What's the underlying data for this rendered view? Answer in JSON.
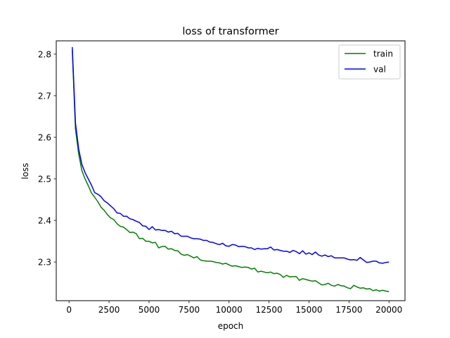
{
  "chart_data": {
    "type": "line",
    "title": "loss of transformer",
    "xlabel": "epoch",
    "ylabel": "loss",
    "xlim": [
      -800,
      21000
    ],
    "ylim": [
      2.207,
      2.832
    ],
    "xticks": [
      0,
      2500,
      5000,
      7500,
      10000,
      12500,
      15000,
      17500,
      20000
    ],
    "xtick_labels": [
      "0",
      "2500",
      "5000",
      "7500",
      "10000",
      "12500",
      "15000",
      "17500",
      "20000"
    ],
    "yticks": [
      2.3,
      2.4,
      2.5,
      2.6,
      2.7,
      2.8
    ],
    "ytick_labels": [
      "2.3",
      "2.4",
      "2.5",
      "2.6",
      "2.7",
      "2.8"
    ],
    "grid": false,
    "legend_position": "upper right",
    "series": [
      {
        "name": "train",
        "color": "#008000",
        "x": [
          200,
          400,
          600,
          800,
          1000,
          1200,
          1400,
          1600,
          1800,
          2000,
          2200,
          2400,
          2600,
          2800,
          3000,
          3200,
          3400,
          3600,
          3800,
          4000,
          4200,
          4400,
          4600,
          4800,
          5000,
          5200,
          5400,
          5600,
          5800,
          6000,
          6200,
          6400,
          6600,
          6800,
          7000,
          7200,
          7400,
          7600,
          7800,
          8000,
          8200,
          8400,
          8600,
          8800,
          9000,
          9200,
          9400,
          9600,
          9800,
          10000,
          10200,
          10400,
          10600,
          10800,
          11000,
          11200,
          11400,
          11600,
          11800,
          12000,
          12200,
          12400,
          12600,
          12800,
          13000,
          13200,
          13400,
          13600,
          13800,
          14000,
          14200,
          14400,
          14600,
          14800,
          15000,
          15200,
          15400,
          15600,
          15800,
          16000,
          16200,
          16400,
          16600,
          16800,
          17000,
          17200,
          17400,
          17600,
          17800,
          18000,
          18200,
          18400,
          18600,
          18800,
          19000,
          19200,
          19400,
          19600,
          19800,
          20000
        ],
        "values": [
          2.81,
          2.62,
          2.56,
          2.52,
          2.5,
          2.484,
          2.466,
          2.456,
          2.445,
          2.432,
          2.424,
          2.414,
          2.406,
          2.402,
          2.392,
          2.386,
          2.384,
          2.378,
          2.371,
          2.372,
          2.368,
          2.356,
          2.357,
          2.35,
          2.35,
          2.346,
          2.347,
          2.334,
          2.337,
          2.338,
          2.331,
          2.332,
          2.328,
          2.327,
          2.319,
          2.316,
          2.318,
          2.314,
          2.31,
          2.313,
          2.305,
          2.303,
          2.302,
          2.302,
          2.301,
          2.299,
          2.298,
          2.295,
          2.297,
          2.293,
          2.29,
          2.291,
          2.289,
          2.287,
          2.288,
          2.287,
          2.283,
          2.285,
          2.276,
          2.278,
          2.276,
          2.274,
          2.276,
          2.272,
          2.273,
          2.27,
          2.263,
          2.268,
          2.264,
          2.265,
          2.265,
          2.256,
          2.26,
          2.258,
          2.256,
          2.254,
          2.255,
          2.25,
          2.245,
          2.246,
          2.249,
          2.244,
          2.242,
          2.246,
          2.243,
          2.242,
          2.238,
          2.236,
          2.244,
          2.24,
          2.237,
          2.238,
          2.235,
          2.236,
          2.231,
          2.233,
          2.23,
          2.232,
          2.23,
          2.229
        ]
      },
      {
        "name": "val",
        "color": "#0000ff",
        "x": [
          200,
          400,
          600,
          800,
          1000,
          1200,
          1400,
          1600,
          1800,
          2000,
          2200,
          2400,
          2600,
          2800,
          3000,
          3200,
          3400,
          3600,
          3800,
          4000,
          4200,
          4400,
          4600,
          4800,
          5000,
          5200,
          5400,
          5600,
          5800,
          6000,
          6200,
          6400,
          6600,
          6800,
          7000,
          7200,
          7400,
          7600,
          7800,
          8000,
          8200,
          8400,
          8600,
          8800,
          9000,
          9200,
          9400,
          9600,
          9800,
          10000,
          10200,
          10400,
          10600,
          10800,
          11000,
          11200,
          11400,
          11600,
          11800,
          12000,
          12200,
          12400,
          12600,
          12800,
          13000,
          13200,
          13400,
          13600,
          13800,
          14000,
          14200,
          14400,
          14600,
          14800,
          15000,
          15200,
          15400,
          15600,
          15800,
          16000,
          16200,
          16400,
          16600,
          16800,
          17000,
          17200,
          17400,
          17600,
          17800,
          18000,
          18200,
          18400,
          18600,
          18800,
          19000,
          19200,
          19400,
          19600,
          19800,
          20000
        ],
        "values": [
          2.817,
          2.635,
          2.572,
          2.535,
          2.515,
          2.5,
          2.485,
          2.467,
          2.463,
          2.457,
          2.447,
          2.442,
          2.435,
          2.428,
          2.418,
          2.417,
          2.41,
          2.41,
          2.404,
          2.402,
          2.398,
          2.395,
          2.387,
          2.386,
          2.378,
          2.385,
          2.377,
          2.378,
          2.376,
          2.376,
          2.372,
          2.374,
          2.368,
          2.369,
          2.362,
          2.362,
          2.362,
          2.358,
          2.356,
          2.356,
          2.355,
          2.352,
          2.352,
          2.348,
          2.347,
          2.344,
          2.342,
          2.345,
          2.339,
          2.338,
          2.342,
          2.341,
          2.337,
          2.338,
          2.337,
          2.334,
          2.334,
          2.33,
          2.333,
          2.331,
          2.332,
          2.332,
          2.336,
          2.329,
          2.33,
          2.328,
          2.326,
          2.326,
          2.323,
          2.328,
          2.325,
          2.32,
          2.327,
          2.319,
          2.322,
          2.318,
          2.324,
          2.317,
          2.314,
          2.317,
          2.313,
          2.315,
          2.31,
          2.31,
          2.31,
          2.31,
          2.307,
          2.305,
          2.306,
          2.304,
          2.311,
          2.305,
          2.299,
          2.3,
          2.302,
          2.302,
          2.298,
          2.297,
          2.299,
          2.3
        ]
      }
    ]
  }
}
